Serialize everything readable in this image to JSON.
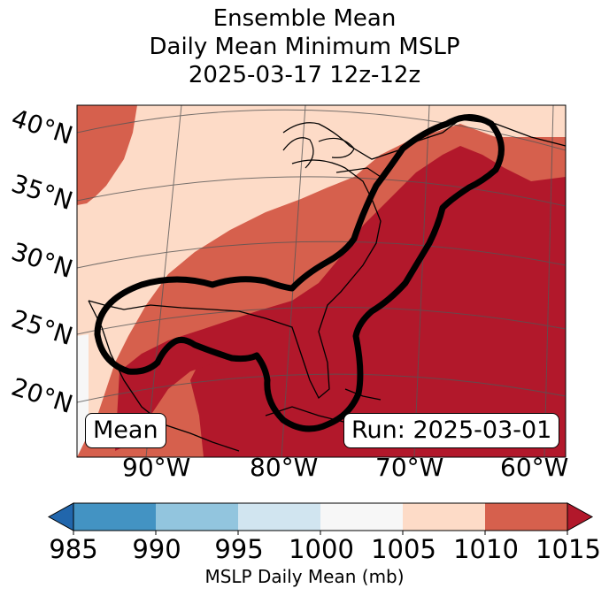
{
  "title": {
    "line1": "Ensemble Mean",
    "line2": "Daily Mean Minimum MSLP",
    "line3": "2025-03-17 12z-12z"
  },
  "map": {
    "lat_labels": [
      "40°N",
      "35°N",
      "30°N",
      "25°N",
      "20°N"
    ],
    "lon_labels": [
      "90°W",
      "80°W",
      "70°W",
      "60°W"
    ],
    "mean_box": "Mean",
    "run_box": "Run: 2025-03-01",
    "fill_colors": {
      "1000-1005": "#f7f7f7",
      "1005-1010": "#fddbc7",
      "1010-1015": "#d6604d",
      "1015+": "#b2182b"
    },
    "contour_color": "#000000"
  },
  "colorbar": {
    "label": "MSLP Daily Mean (mb)",
    "ticks": [
      "985",
      "990",
      "995",
      "1000",
      "1005",
      "1010",
      "1015"
    ],
    "colors": [
      "#2166ac",
      "#4393c3",
      "#92c5de",
      "#d1e5f0",
      "#f7f7f7",
      "#fddbc7",
      "#d6604d",
      "#b2182b"
    ]
  }
}
